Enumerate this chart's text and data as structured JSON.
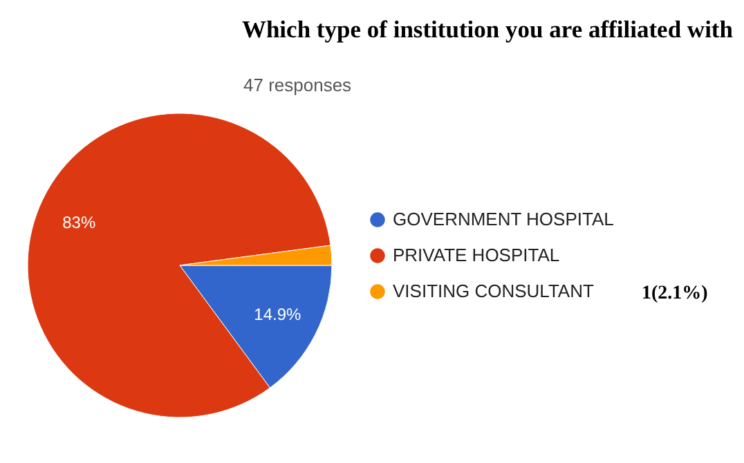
{
  "chart_data": {
    "type": "pie",
    "title": "Which type of institution you are affiliated with",
    "subtitle": "47 responses",
    "categories": [
      "GOVERNMENT HOSPITAL",
      "PRIVATE HOSPITAL",
      "VISITING CONSULTANT"
    ],
    "values": [
      14.9,
      83,
      2.1
    ],
    "colors": [
      "#3366cc",
      "#dc3912",
      "#ff9900"
    ],
    "value_labels": [
      "14.9%",
      "83%",
      null
    ],
    "legend": "right",
    "annotations": [
      "1(2.1%)"
    ]
  }
}
